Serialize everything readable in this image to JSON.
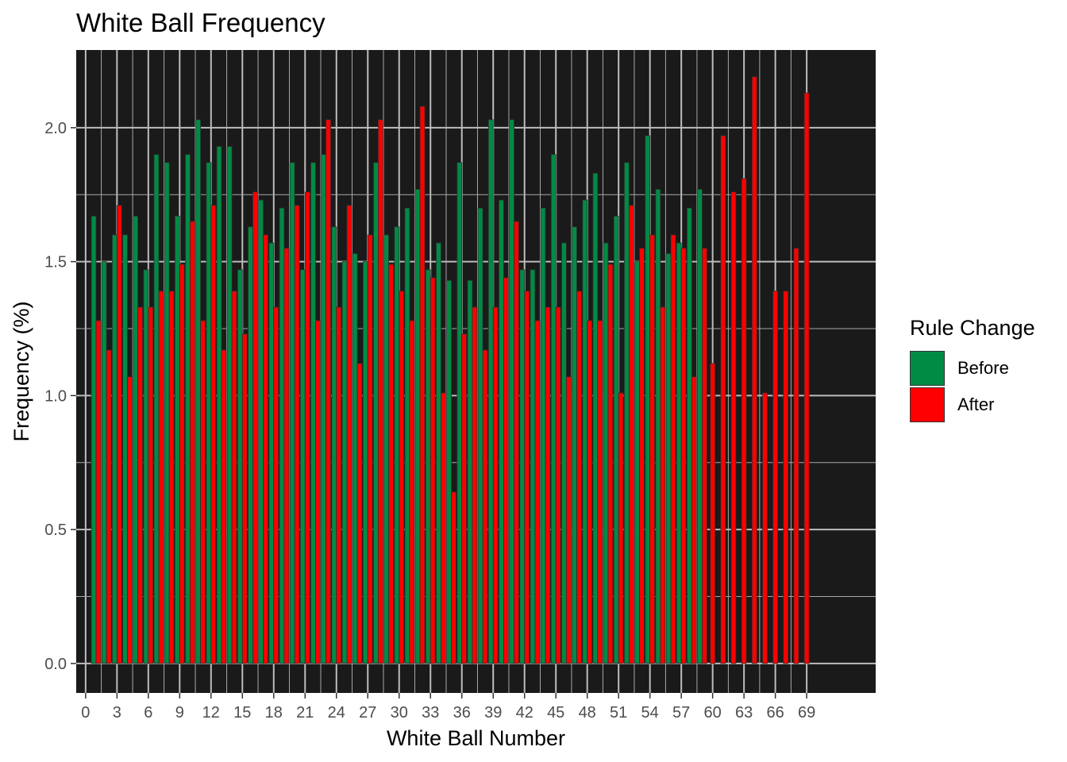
{
  "chart_data": {
    "type": "bar",
    "title": "White Ball Frequency",
    "xlabel": "White Ball Number",
    "ylabel": "Frequency (%)",
    "xlim": [
      -0.9,
      75.6
    ],
    "ylim": [
      -0.11,
      2.29
    ],
    "xticks": [
      0,
      3,
      6,
      9,
      12,
      15,
      18,
      21,
      24,
      27,
      30,
      33,
      36,
      39,
      42,
      45,
      48,
      51,
      54,
      57,
      60,
      63,
      66,
      69
    ],
    "yticks": [
      0.0,
      0.5,
      1.0,
      1.5,
      2.0
    ],
    "ytick_labels": [
      "0.0",
      "0.5",
      "1.0",
      "1.5",
      "2.0"
    ],
    "grid": true,
    "background": "#1a1a1a",
    "legend": {
      "title": "Rule Change",
      "position": "right"
    },
    "x": [
      1,
      2,
      3,
      4,
      5,
      6,
      7,
      8,
      9,
      10,
      11,
      12,
      13,
      14,
      15,
      16,
      17,
      18,
      19,
      20,
      21,
      22,
      23,
      24,
      25,
      26,
      27,
      28,
      29,
      30,
      31,
      32,
      33,
      34,
      35,
      36,
      37,
      38,
      39,
      40,
      41,
      42,
      43,
      44,
      45,
      46,
      47,
      48,
      49,
      50,
      51,
      52,
      53,
      54,
      55,
      56,
      57,
      58,
      59,
      60,
      61,
      62,
      63,
      64,
      65,
      66,
      67,
      68,
      69
    ],
    "series": [
      {
        "name": "Before",
        "color": "#008b45",
        "values": [
          1.67,
          1.5,
          1.6,
          1.6,
          1.67,
          1.47,
          1.9,
          1.87,
          1.67,
          1.9,
          2.03,
          1.87,
          1.93,
          1.93,
          1.47,
          1.63,
          1.73,
          1.57,
          1.7,
          1.87,
          1.47,
          1.87,
          1.9,
          1.63,
          1.5,
          1.53,
          1.5,
          1.87,
          1.6,
          1.63,
          1.7,
          1.77,
          1.47,
          1.57,
          1.43,
          1.87,
          1.43,
          1.7,
          2.03,
          1.73,
          2.03,
          1.47,
          1.47,
          1.7,
          1.9,
          1.57,
          1.63,
          1.73,
          1.83,
          1.57,
          1.67,
          1.87,
          1.5,
          1.97,
          1.77,
          1.53,
          1.57,
          1.7,
          1.77,
          null,
          null,
          null,
          null,
          null,
          null,
          null,
          null,
          null,
          null
        ]
      },
      {
        "name": "After",
        "color": "#ff0000",
        "values": [
          1.28,
          1.17,
          1.71,
          1.07,
          1.33,
          1.33,
          1.39,
          1.39,
          1.49,
          1.65,
          1.28,
          1.71,
          1.17,
          1.39,
          1.23,
          1.76,
          1.6,
          1.33,
          1.55,
          1.71,
          1.76,
          1.28,
          2.03,
          1.33,
          1.71,
          1.12,
          1.6,
          2.03,
          1.49,
          1.39,
          1.28,
          2.08,
          1.44,
          1.01,
          0.64,
          1.23,
          1.33,
          1.17,
          1.33,
          1.44,
          1.65,
          1.39,
          1.28,
          1.33,
          1.33,
          1.07,
          1.39,
          1.28,
          1.28,
          1.49,
          1.01,
          1.71,
          1.55,
          1.6,
          1.33,
          1.6,
          1.55,
          1.07,
          1.55,
          1.12,
          1.97,
          1.76,
          1.81,
          2.19,
          1.01,
          1.39,
          1.39,
          1.55,
          2.13
        ]
      }
    ]
  }
}
